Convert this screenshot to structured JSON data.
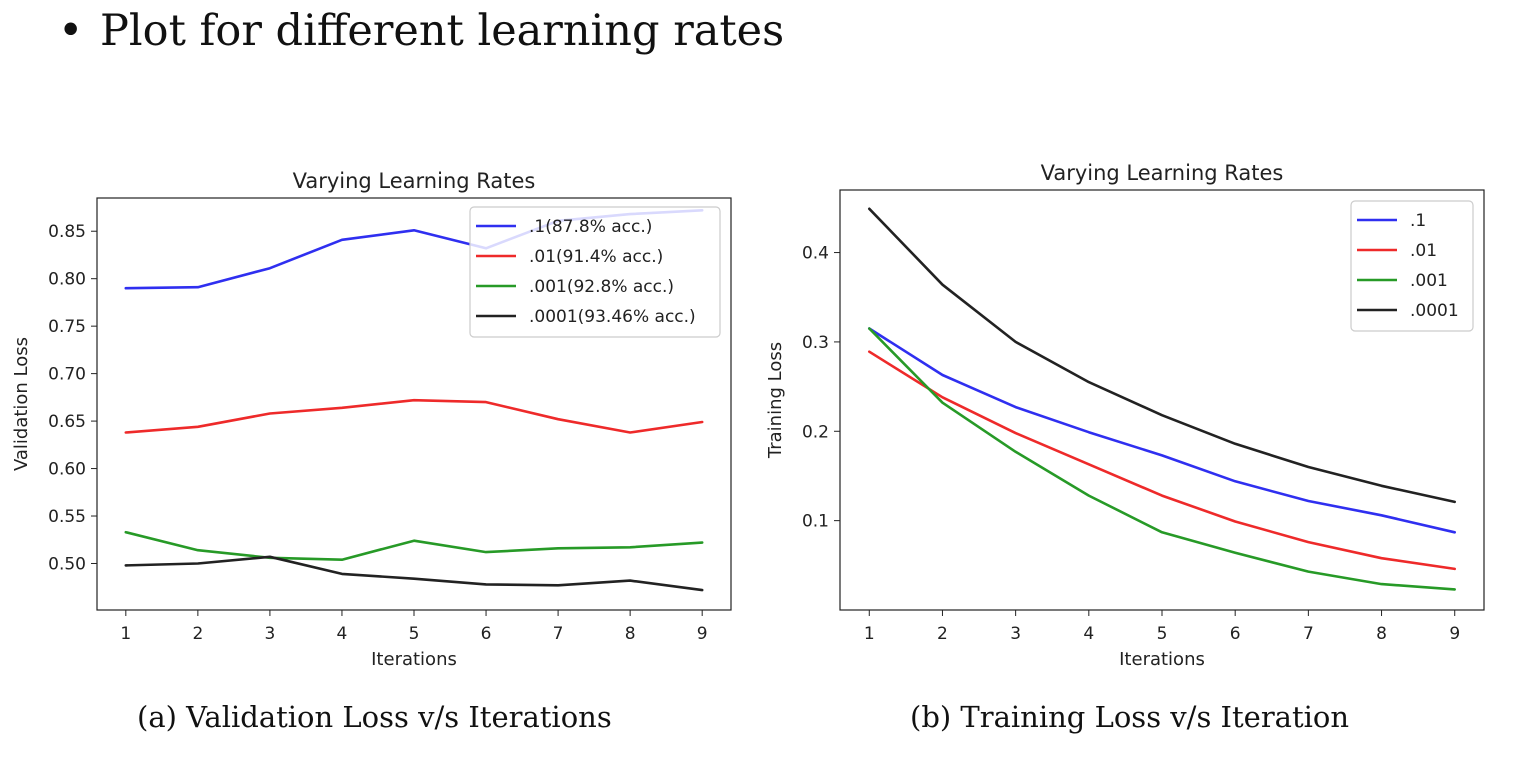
{
  "heading": {
    "bullet": "•",
    "text": "Plot for different learning rates"
  },
  "captions": {
    "a": "(a) Validation Loss v/s Iterations",
    "b": "(b) Training Loss v/s Iteration"
  },
  "colors": {
    "blue": "#2f2ff0",
    "red": "#ee2a2a",
    "green": "#279a27",
    "black": "#222222"
  },
  "chart_data": [
    {
      "type": "line",
      "title": "Varying Learning Rates",
      "xlabel": "Iterations",
      "ylabel": "Validation Loss",
      "x": [
        1,
        2,
        3,
        4,
        5,
        6,
        7,
        8,
        9
      ],
      "xlim": [
        0.6,
        9.4
      ],
      "ylim": [
        0.451,
        0.885
      ],
      "xticks": [
        "1",
        "2",
        "3",
        "4",
        "5",
        "6",
        "7",
        "8",
        "9"
      ],
      "yticks": [
        0.5,
        0.55,
        0.6,
        0.65,
        0.7,
        0.75,
        0.8,
        0.85
      ],
      "ytick_labels": [
        "0.50",
        "0.55",
        "0.60",
        "0.65",
        "0.70",
        "0.75",
        "0.80",
        "0.85"
      ],
      "legend_position": "top-right",
      "series": [
        {
          "name": ".1(87.8% acc.)",
          "color": "blue",
          "values": [
            0.79,
            0.791,
            0.811,
            0.841,
            0.851,
            0.832,
            0.861,
            0.868,
            0.872
          ]
        },
        {
          "name": ".01(91.4% acc.)",
          "color": "red",
          "values": [
            0.638,
            0.644,
            0.658,
            0.664,
            0.672,
            0.67,
            0.652,
            0.638,
            0.649
          ]
        },
        {
          "name": ".001(92.8% acc.)",
          "color": "green",
          "values": [
            0.533,
            0.514,
            0.506,
            0.504,
            0.524,
            0.512,
            0.516,
            0.517,
            0.522
          ]
        },
        {
          "name": ".0001(93.46% acc.)",
          "color": "black",
          "values": [
            0.498,
            0.5,
            0.507,
            0.489,
            0.484,
            0.478,
            0.477,
            0.482,
            0.472
          ]
        }
      ]
    },
    {
      "type": "line",
      "title": "Varying Learning Rates",
      "xlabel": "Iterations",
      "ylabel": "Training Loss",
      "x": [
        1,
        2,
        3,
        4,
        5,
        6,
        7,
        8,
        9
      ],
      "xlim": [
        0.6,
        9.4
      ],
      "ylim": [
        0.0,
        0.47
      ],
      "xticks": [
        "1",
        "2",
        "3",
        "4",
        "5",
        "6",
        "7",
        "8",
        "9"
      ],
      "yticks": [
        0.1,
        0.2,
        0.3,
        0.4
      ],
      "ytick_labels": [
        "0.1",
        "0.2",
        "0.3",
        "0.4"
      ],
      "legend_position": "top-right",
      "series": [
        {
          "name": ".1",
          "color": "blue",
          "values": [
            0.315,
            0.263,
            0.227,
            0.199,
            0.173,
            0.144,
            0.122,
            0.106,
            0.087
          ]
        },
        {
          "name": ".01",
          "color": "red",
          "values": [
            0.289,
            0.238,
            0.198,
            0.163,
            0.128,
            0.099,
            0.076,
            0.058,
            0.046
          ]
        },
        {
          "name": ".001",
          "color": "green",
          "values": [
            0.315,
            0.232,
            0.177,
            0.128,
            0.087,
            0.064,
            0.043,
            0.029,
            0.023
          ]
        },
        {
          "name": ".0001",
          "color": "black",
          "values": [
            0.449,
            0.364,
            0.3,
            0.255,
            0.218,
            0.186,
            0.16,
            0.139,
            0.121
          ]
        }
      ]
    }
  ]
}
